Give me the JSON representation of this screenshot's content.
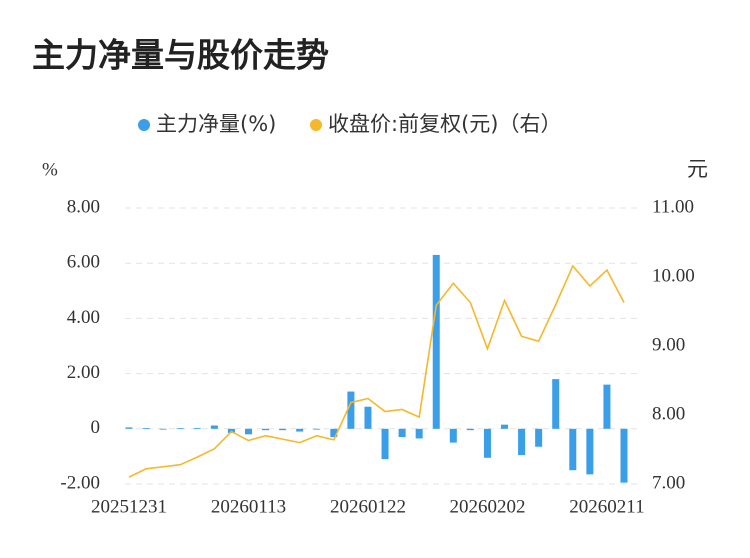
{
  "chart_data": {
    "type": "bar_line",
    "title": "主力净量与股价走势",
    "categories": [
      "20251231",
      null,
      null,
      null,
      null,
      null,
      null,
      "20260113",
      null,
      null,
      null,
      null,
      null,
      null,
      "20260122",
      null,
      null,
      null,
      null,
      null,
      null,
      "20260202",
      null,
      null,
      null,
      null,
      null,
      null,
      "20260211",
      null
    ],
    "series": [
      {
        "name": "主力净量(%)",
        "type": "bar",
        "color": "#3a9ee8",
        "values": [
          0.05,
          0.03,
          0,
          0.02,
          0.03,
          0.12,
          -0.15,
          -0.2,
          -0.05,
          -0.05,
          -0.1,
          0,
          -0.3,
          1.35,
          0.8,
          -1.1,
          -0.3,
          -0.35,
          6.3,
          -0.5,
          -0.05,
          -1.05,
          0.15,
          -0.95,
          -0.65,
          1.8,
          -1.5,
          -1.65,
          1.6,
          -1.95
        ]
      },
      {
        "name": "收盘价:前复权(元)（右）",
        "type": "line",
        "axis": "y2",
        "color": "#f5b82a",
        "values": [
          7.1,
          7.22,
          7.25,
          7.28,
          7.39,
          7.51,
          7.76,
          7.63,
          7.7,
          7.65,
          7.6,
          7.7,
          7.64,
          8.18,
          8.24,
          8.05,
          8.08,
          7.97,
          9.59,
          9.91,
          9.63,
          8.96,
          9.66,
          9.14,
          9.07,
          9.6,
          10.16,
          9.87,
          10.1,
          9.63
        ]
      }
    ],
    "y_unit": "%",
    "y2_unit": "元",
    "ylim": [
      -2,
      8
    ],
    "yticks": [
      {
        "value": -2,
        "label": "-2.00"
      },
      0,
      {
        "value": 2,
        "label": "2.00"
      },
      {
        "value": 4,
        "label": "4.00"
      },
      {
        "value": 6,
        "label": "6.00"
      },
      {
        "value": 8,
        "label": "8.00"
      }
    ],
    "y2lim": [
      7,
      11
    ],
    "y2ticks": [
      {
        "value": 7,
        "label": "7.00"
      },
      {
        "value": 8,
        "label": "8.00"
      },
      {
        "value": 9,
        "label": "9.00"
      },
      {
        "value": 10,
        "label": "10.00"
      },
      {
        "value": 11,
        "label": "11.00"
      }
    ],
    "grid": true
  }
}
